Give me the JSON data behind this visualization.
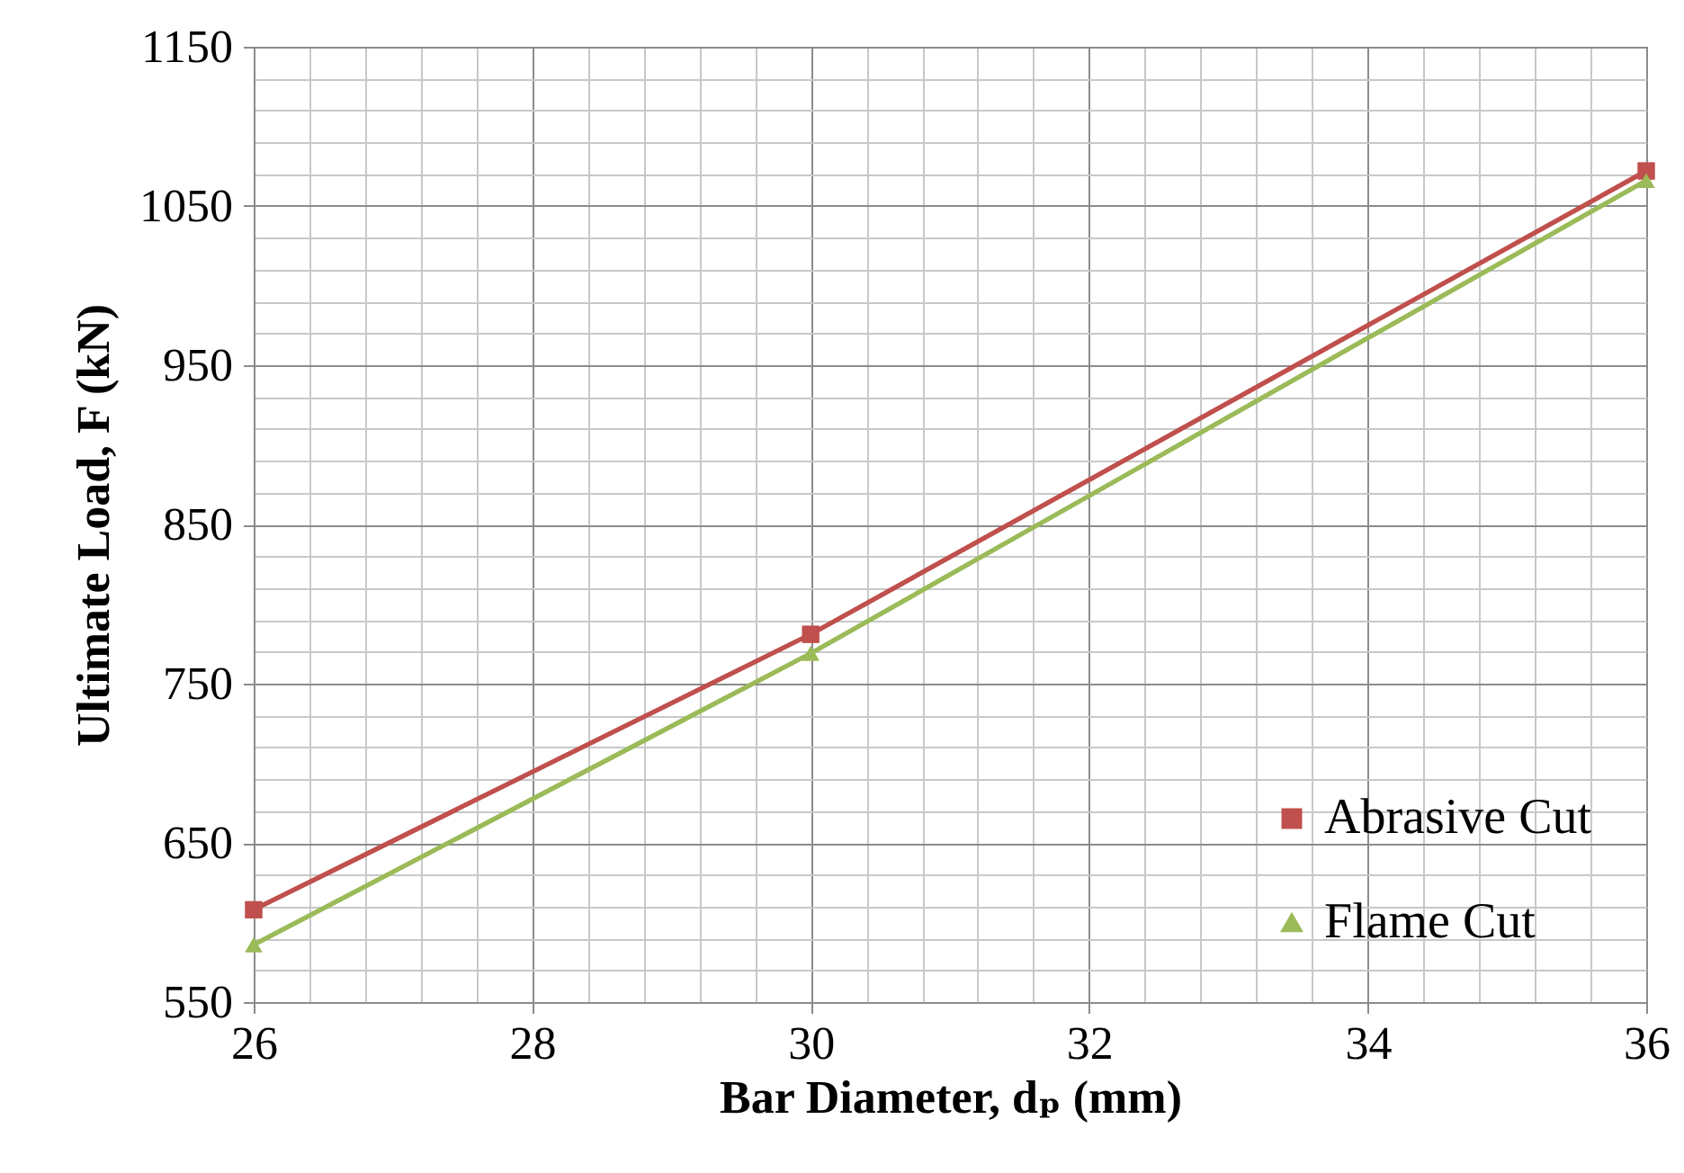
{
  "chart_data": {
    "type": "line",
    "xlabel": "Bar Diameter, dₚ (mm)",
    "ylabel": "Ultimate Load, F (kN)",
    "x": [
      26,
      30,
      36
    ],
    "series": [
      {
        "name": "Abrasive Cut",
        "color": "#c0504d",
        "marker": "square",
        "values": [
          608,
          781,
          1072
        ]
      },
      {
        "name": "Flame Cut",
        "color": "#9bbb59",
        "marker": "triangle",
        "values": [
          586,
          769,
          1066
        ]
      }
    ],
    "xlim": [
      26,
      36
    ],
    "xticks": [
      26,
      28,
      30,
      32,
      34,
      36
    ],
    "ylim": [
      550,
      1150
    ],
    "yticks": [
      550,
      650,
      750,
      850,
      950,
      1050,
      1150
    ],
    "grid": true,
    "legend": "bottom right",
    "line_style": "solid"
  }
}
